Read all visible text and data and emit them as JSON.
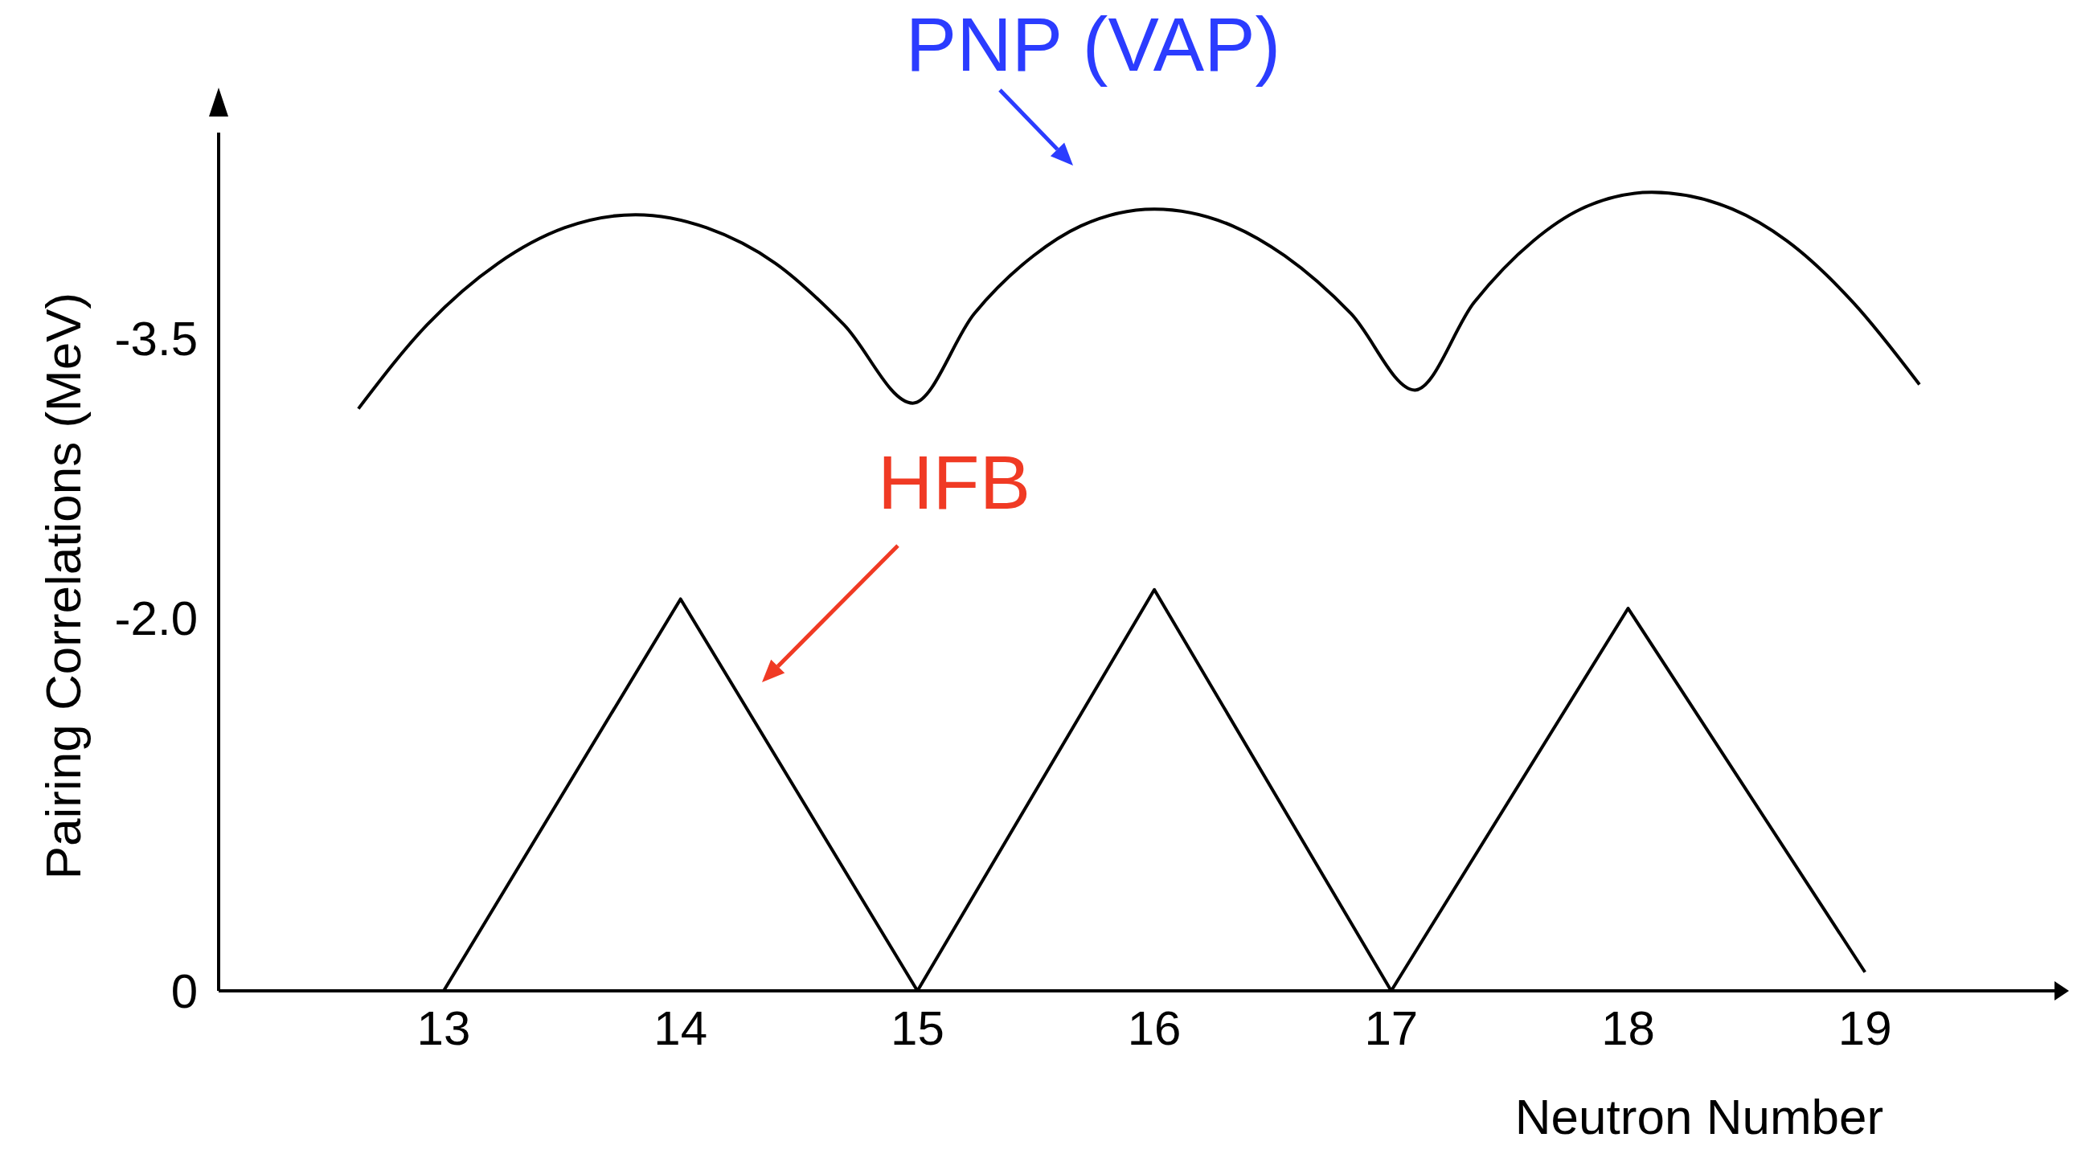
{
  "chart_data": {
    "type": "line",
    "xlabel": "Neutron Number",
    "ylabel": "Pairing Correlations (MeV)",
    "xlim": [
      12.05,
      19.8
    ],
    "xticks": [
      13,
      14,
      15,
      16,
      17,
      18,
      19
    ],
    "ylim": [
      0,
      -4.6
    ],
    "yticks": [
      0,
      {
        "value": -2,
        "label": "-2.0"
      },
      {
        "value": -3.5,
        "label": "-3.5"
      }
    ],
    "grid": false,
    "legend": false,
    "marker": "none",
    "line_style": "solid",
    "series": [
      {
        "color": "#000000",
        "x": [
          12.64,
          12.93,
          13.23,
          13.51,
          13.81,
          14.11,
          14.4,
          14.69,
          14.98,
          15.24,
          15.49,
          15.69,
          16.0,
          16.33,
          16.55,
          16.83,
          17.1,
          17.35,
          17.6,
          17.8,
          18.1,
          18.44,
          18.67,
          18.95,
          19.23
        ],
        "values": [
          -3.12,
          -3.57,
          -3.9,
          -4.09,
          -4.16,
          -4.09,
          -3.9,
          -3.57,
          -3.15,
          -3.63,
          -3.94,
          -4.1,
          -4.19,
          -4.1,
          -3.94,
          -3.63,
          -3.22,
          -3.69,
          -4.02,
          -4.19,
          -4.28,
          -4.19,
          -4.02,
          -3.69,
          -3.25
        ]
      },
      {
        "color": "#000000",
        "x": [
          13,
          14,
          15,
          16,
          17,
          18,
          19
        ],
        "values": [
          0,
          -2.1,
          0,
          -2.15,
          0,
          -2.05,
          -0.1
        ]
      }
    ],
    "annotations": [
      "PNP (VAP)",
      "HFB"
    ]
  }
}
